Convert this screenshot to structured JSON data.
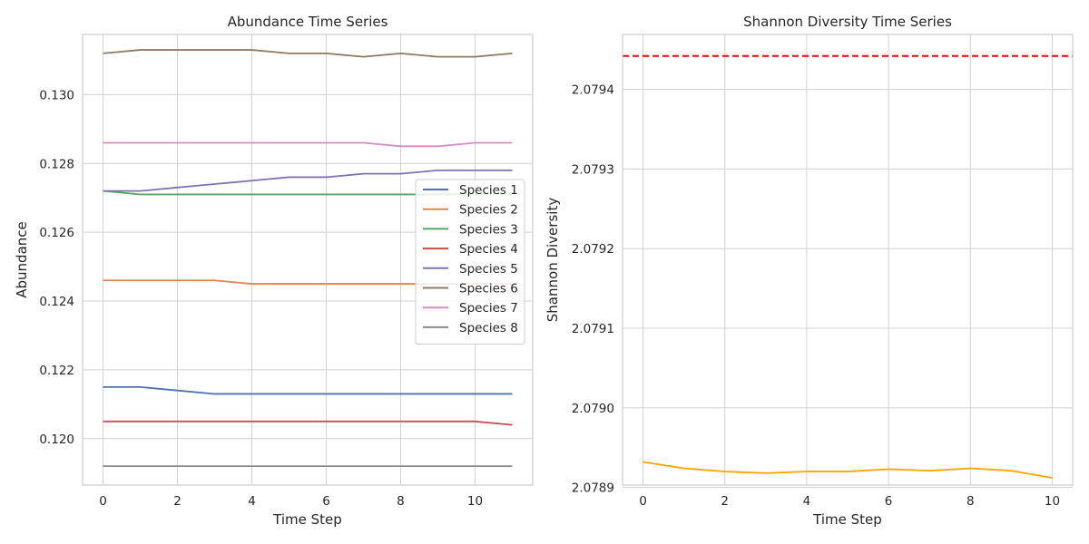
{
  "chart_data": [
    {
      "type": "line",
      "title": "Abundance Time Series",
      "xlabel": "Time Step",
      "ylabel": "Abundance",
      "xlim": [
        -0.55,
        11.55
      ],
      "ylim": [
        0.11865,
        0.13175
      ],
      "x_ticks": [
        0,
        2,
        4,
        6,
        8,
        10
      ],
      "x_tick_labels": [
        "0",
        "2",
        "4",
        "6",
        "8",
        "10"
      ],
      "y_ticks": [
        0.12,
        0.122,
        0.124,
        0.126,
        0.128,
        0.13
      ],
      "y_tick_labels": [
        "0.120",
        "0.122",
        "0.124",
        "0.126",
        "0.128",
        "0.130"
      ],
      "grid": true,
      "legend_position": "center-right",
      "x": [
        0,
        1,
        2,
        3,
        4,
        5,
        6,
        7,
        8,
        9,
        10,
        11
      ],
      "series": [
        {
          "name": "Species 1",
          "color": "#4c72b0",
          "values": [
            0.1215,
            0.1215,
            0.1214,
            0.1213,
            0.1213,
            0.1213,
            0.1213,
            0.1213,
            0.1213,
            0.1213,
            0.1213,
            0.1213
          ]
        },
        {
          "name": "Species 2",
          "color": "#dd8452",
          "values": [
            0.1246,
            0.1246,
            0.1246,
            0.1246,
            0.1245,
            0.1245,
            0.1245,
            0.1245,
            0.1245,
            0.1245,
            0.1245,
            0.1245
          ]
        },
        {
          "name": "Species 3",
          "color": "#55a868",
          "values": [
            0.1272,
            0.1271,
            0.1271,
            0.1271,
            0.1271,
            0.1271,
            0.1271,
            0.1271,
            0.1271,
            0.1271,
            0.1271,
            0.1271
          ]
        },
        {
          "name": "Species 4",
          "color": "#c44e52",
          "values": [
            0.1205,
            0.1205,
            0.1205,
            0.1205,
            0.1205,
            0.1205,
            0.1205,
            0.1205,
            0.1205,
            0.1205,
            0.1205,
            0.1204
          ]
        },
        {
          "name": "Species 5",
          "color": "#8172b3",
          "values": [
            0.1272,
            0.1272,
            0.1273,
            0.1274,
            0.1275,
            0.1276,
            0.1276,
            0.1277,
            0.1277,
            0.1278,
            0.1278,
            0.1278
          ]
        },
        {
          "name": "Species 6",
          "color": "#937860",
          "values": [
            0.1312,
            0.1313,
            0.1313,
            0.1313,
            0.1313,
            0.1312,
            0.1312,
            0.1311,
            0.1312,
            0.1311,
            0.1311,
            0.1312
          ]
        },
        {
          "name": "Species 7",
          "color": "#da8bc3",
          "values": [
            0.1286,
            0.1286,
            0.1286,
            0.1286,
            0.1286,
            0.1286,
            0.1286,
            0.1286,
            0.1285,
            0.1285,
            0.1286,
            0.1286
          ]
        },
        {
          "name": "Species 8",
          "color": "#8c8c8c",
          "values": [
            0.1192,
            0.1192,
            0.1192,
            0.1192,
            0.1192,
            0.1192,
            0.1192,
            0.1192,
            0.1192,
            0.1192,
            0.1192,
            0.1192
          ]
        }
      ]
    },
    {
      "type": "line",
      "title": "Shannon Diversity Time Series",
      "xlabel": "Time Step",
      "ylabel": "Shannon Diversity",
      "xlim": [
        -0.5,
        10.5
      ],
      "ylim": [
        2.078903,
        2.079469
      ],
      "x_ticks": [
        0,
        2,
        4,
        6,
        8,
        10
      ],
      "x_tick_labels": [
        "0",
        "2",
        "4",
        "6",
        "8",
        "10"
      ],
      "y_ticks": [
        2.0789,
        2.079,
        2.0791,
        2.0792,
        2.0793,
        2.0794
      ],
      "y_tick_labels": [
        "2.0789",
        "2.0790",
        "2.0791",
        "2.0792",
        "2.0793",
        "2.0794"
      ],
      "grid": true,
      "x": [
        0,
        1,
        2,
        3,
        4,
        5,
        6,
        7,
        8,
        9,
        10
      ],
      "series": [
        {
          "color": "#ffa500",
          "values": [
            2.078932,
            2.078924,
            2.07892,
            2.078918,
            2.07892,
            2.07892,
            2.078923,
            2.078921,
            2.078924,
            2.078921,
            2.078912
          ]
        }
      ],
      "reference_line": {
        "y": 2.079442,
        "color": "#ff0000",
        "style": "dashed"
      }
    }
  ]
}
